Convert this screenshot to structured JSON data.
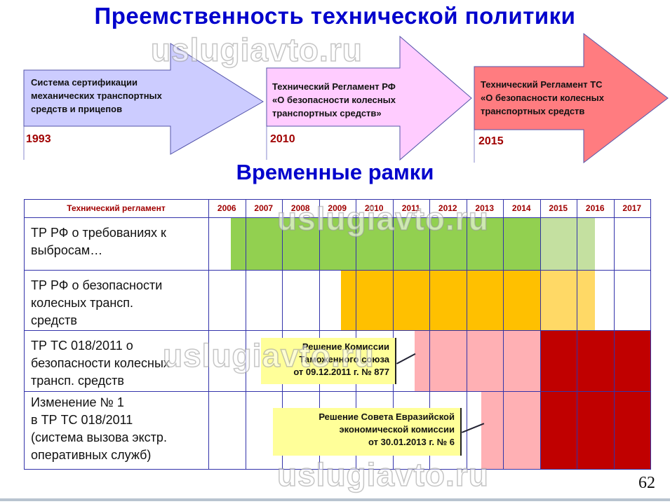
{
  "title": "Преемственность технической политики",
  "arrows": [
    {
      "text": [
        "Система сертификации",
        "механических транспортных",
        "средств и прицепов"
      ],
      "year": "1993",
      "color": "#ccccff"
    },
    {
      "text": [
        "Технический Регламент РФ",
        "«О безопасности колесных",
        "транспортных средств»"
      ],
      "year": "2010",
      "color": "#ffccff"
    },
    {
      "text": [
        "Технический Регламент ТС",
        "«О безопасности колесных",
        "транспортных средств"
      ],
      "year": "2015",
      "color": "#ff7c80"
    }
  ],
  "subtitle": "Временные рамки",
  "table": {
    "header": "Технический регламент",
    "years": [
      "2006",
      "2007",
      "2008",
      "2009",
      "2010",
      "2011",
      "2012",
      "2013",
      "2014",
      "2015",
      "2016",
      "2017"
    ],
    "rows": [
      {
        "label": [
          "ТР РФ о требованиях к",
          "выбросам…"
        ],
        "bars": [
          {
            "from": 2006.6,
            "to": 2015,
            "color": "#92d050"
          },
          {
            "from": 2015,
            "to": 2016.5,
            "color": "#c4e0a0"
          }
        ]
      },
      {
        "label": [
          "ТР РФ о безопасности",
          "колесных трансп.",
          "средств"
        ],
        "bars": [
          {
            "from": 2009.6,
            "to": 2015,
            "color": "#ffc000"
          },
          {
            "from": 2015,
            "to": 2016.5,
            "color": "#ffd966"
          }
        ]
      },
      {
        "label": [
          "ТР ТС 018/2011 о",
          "безопасности колесных",
          "трансп. средств"
        ],
        "bars": [
          {
            "from": 2011.6,
            "to": 2015,
            "color": "#ffb0b4"
          },
          {
            "from": 2015,
            "to": 2018,
            "color": "#c00000"
          }
        ]
      },
      {
        "label": [
          "Изменение  № 1",
          "в ТР ТС 018/2011",
          "(система вызова экстр.",
          "оперативных  служб)"
        ],
        "bars": [
          {
            "from": 2013.4,
            "to": 2015,
            "color": "#ffb0b4"
          },
          {
            "from": 2015,
            "to": 2018,
            "color": "#c00000"
          }
        ]
      }
    ]
  },
  "callouts": [
    {
      "lines": [
        "Решение Комиссии",
        "Таможенного союза",
        "от 09.12.2011 г. № 877"
      ]
    },
    {
      "lines": [
        "Решение Совета Евразийской",
        "экономической комиссии",
        "от 30.01.2013 г. № 6"
      ]
    }
  ],
  "watermark": "uslugiavto.ru",
  "page_number": "62"
}
